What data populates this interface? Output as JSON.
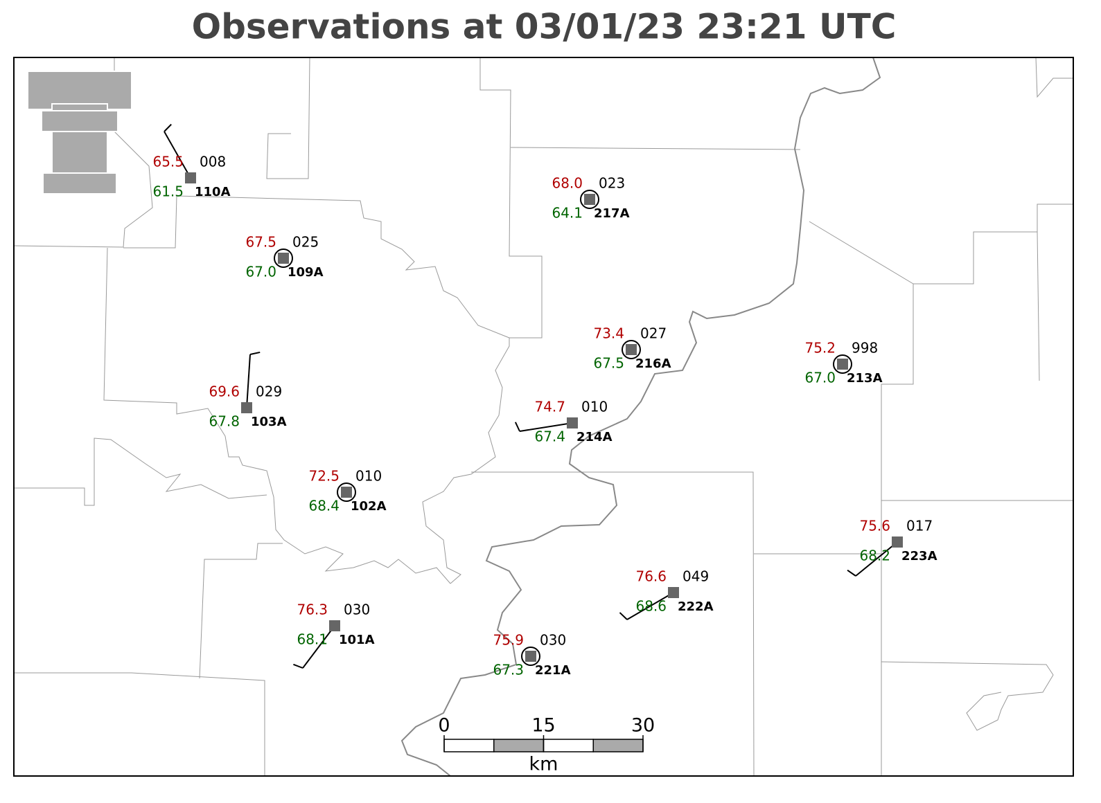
{
  "title": "Observations at 03/01/23 23:21 UTC",
  "stations": [
    {
      "id": "110A",
      "temperature": "65.5",
      "dewpoint": "61.5",
      "pressure": "008"
    },
    {
      "id": "109A",
      "temperature": "67.5",
      "dewpoint": "67.0",
      "pressure": "025"
    },
    {
      "id": "217A",
      "temperature": "68.0",
      "dewpoint": "64.1",
      "pressure": "023"
    },
    {
      "id": "103A",
      "temperature": "69.6",
      "dewpoint": "67.8",
      "pressure": "029"
    },
    {
      "id": "216A",
      "temperature": "73.4",
      "dewpoint": "67.5",
      "pressure": "027"
    },
    {
      "id": "213A",
      "temperature": "75.2",
      "dewpoint": "67.0",
      "pressure": "998"
    },
    {
      "id": "214A",
      "temperature": "74.7",
      "dewpoint": "67.4",
      "pressure": "010"
    },
    {
      "id": "102A",
      "temperature": "72.5",
      "dewpoint": "68.4",
      "pressure": "010"
    },
    {
      "id": "223A",
      "temperature": "75.6",
      "dewpoint": "68.2",
      "pressure": "017"
    },
    {
      "id": "222A",
      "temperature": "76.6",
      "dewpoint": "68.6",
      "pressure": "049"
    },
    {
      "id": "101A",
      "temperature": "76.3",
      "dewpoint": "68.1",
      "pressure": "030"
    },
    {
      "id": "221A",
      "temperature": "75.9",
      "dewpoint": "67.3",
      "pressure": "030"
    }
  ],
  "scale_bar": {
    "labels": [
      "0",
      "15",
      "30"
    ],
    "unit": "km"
  }
}
